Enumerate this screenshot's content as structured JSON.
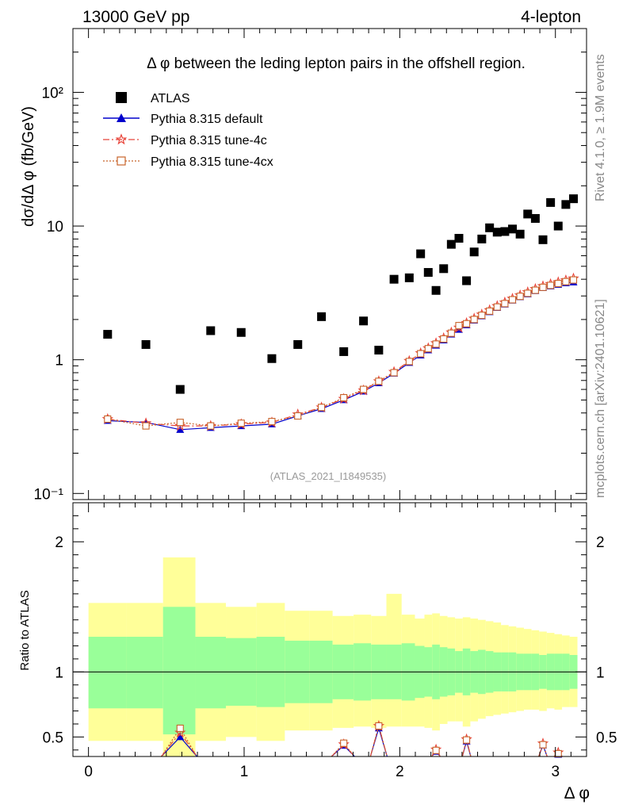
{
  "header": {
    "energy": "13000 GeV pp",
    "process": "4-lepton"
  },
  "side_labels": {
    "rivet": "Rivet 4.1.0, ≥ 1.9M events",
    "mcplots": "mcplots.cern.ch [arXiv:2401.10621]"
  },
  "chart_data": {
    "type": "scatter",
    "title": "Δ φ between the leding lepton pairs in the offshell region.",
    "analysis_tag": "(ATLAS_2021_I1849535)",
    "xlabel": "Δ φ",
    "ylabel": "dσ/dΔ φ (fb/GeV)",
    "ratio_ylabel": "Ratio to ATLAS",
    "xlim": [
      -0.1,
      3.2
    ],
    "ylim": [
      0.09,
      300
    ],
    "ratio_ylim": [
      0.35,
      2.3
    ],
    "x_ticks": [
      "0",
      "1",
      "2",
      "3"
    ],
    "y_ticks": [
      "10⁻¹",
      "1",
      "10",
      "10²"
    ],
    "ratio_ticks": [
      "0.5",
      "1",
      "2"
    ],
    "colors": {
      "data": "#000000",
      "default": "#0000cc",
      "tune4c": "#e8443a",
      "tune4cx": "#c8632a",
      "band_inner": "#99ff99",
      "band_outer": "#ffff99"
    },
    "legend": [
      "ATLAS",
      "Pythia 8.315 default",
      "Pythia 8.315 tune-4c",
      "Pythia 8.315 tune-4cx"
    ],
    "data": {
      "name": "ATLAS",
      "x": [
        0.123,
        0.369,
        0.589,
        0.785,
        0.981,
        1.178,
        1.345,
        1.497,
        1.64,
        1.767,
        1.865,
        1.963,
        2.061,
        2.134,
        2.183,
        2.233,
        2.282,
        2.331,
        2.38,
        2.429,
        2.478,
        2.527,
        2.577,
        2.626,
        2.675,
        2.724,
        2.773,
        2.822,
        2.871,
        2.92,
        2.969,
        3.018,
        3.067,
        3.116
      ],
      "y": [
        1.55,
        1.3,
        0.6,
        1.65,
        1.6,
        1.02,
        1.3,
        2.1,
        1.15,
        1.95,
        1.18,
        4.0,
        4.1,
        6.2,
        4.5,
        3.3,
        4.8,
        7.3,
        8.1,
        3.9,
        6.4,
        8.0,
        9.7,
        9.0,
        9.1,
        9.5,
        8.7,
        12.3,
        11.4,
        7.9,
        15.0,
        10.0,
        14.5,
        16.0
      ],
      "band_inner_lo": [
        0.72,
        0.72,
        0.52,
        0.72,
        0.74,
        0.73,
        0.76,
        0.76,
        0.79,
        0.78,
        0.79,
        0.79,
        0.78,
        0.8,
        0.81,
        0.79,
        0.81,
        0.82,
        0.84,
        0.82,
        0.84,
        0.83,
        0.84,
        0.85,
        0.85,
        0.85,
        0.86,
        0.86,
        0.86,
        0.87,
        0.86,
        0.86,
        0.86,
        0.87
      ],
      "band_inner_hi": [
        1.27,
        1.27,
        1.5,
        1.27,
        1.26,
        1.27,
        1.24,
        1.24,
        1.21,
        1.22,
        1.21,
        1.21,
        1.22,
        1.2,
        1.19,
        1.21,
        1.19,
        1.18,
        1.16,
        1.18,
        1.16,
        1.17,
        1.16,
        1.15,
        1.15,
        1.15,
        1.14,
        1.14,
        1.14,
        1.13,
        1.14,
        1.14,
        1.14,
        1.13
      ],
      "band_outer_lo": [
        0.47,
        0.47,
        0.3,
        0.47,
        0.5,
        0.47,
        0.55,
        0.55,
        0.57,
        0.58,
        0.57,
        0.58,
        0.58,
        0.58,
        0.57,
        0.55,
        0.6,
        0.62,
        0.62,
        0.58,
        0.62,
        0.64,
        0.66,
        0.67,
        0.68,
        0.69,
        0.7,
        0.71,
        0.71,
        0.7,
        0.72,
        0.71,
        0.73,
        0.73
      ],
      "band_outer_hi": [
        1.53,
        1.53,
        1.88,
        1.53,
        1.5,
        1.53,
        1.47,
        1.47,
        1.43,
        1.44,
        1.43,
        1.6,
        1.44,
        1.41,
        1.44,
        1.45,
        1.43,
        1.42,
        1.41,
        1.42,
        1.41,
        1.4,
        1.39,
        1.38,
        1.36,
        1.35,
        1.34,
        1.33,
        1.32,
        1.31,
        1.3,
        1.29,
        1.28,
        1.27
      ]
    },
    "series": [
      {
        "name": "Pythia 8.315 default",
        "marker": "triangle",
        "dash": "",
        "values": [
          0.35,
          0.34,
          0.3,
          0.31,
          0.32,
          0.33,
          0.38,
          0.43,
          0.5,
          0.58,
          0.67,
          0.79,
          0.95,
          1.08,
          1.18,
          1.28,
          1.4,
          1.55,
          1.68,
          1.82,
          1.97,
          2.12,
          2.28,
          2.45,
          2.6,
          2.78,
          2.95,
          3.1,
          3.28,
          3.45,
          3.55,
          3.65,
          3.75,
          3.8
        ]
      },
      {
        "name": "Pythia 8.315 tune-4c",
        "marker": "star",
        "dash": "8,3,2,3",
        "values": [
          0.36,
          0.335,
          0.32,
          0.32,
          0.33,
          0.34,
          0.39,
          0.44,
          0.51,
          0.59,
          0.69,
          0.81,
          0.98,
          1.12,
          1.22,
          1.33,
          1.45,
          1.6,
          1.74,
          1.88,
          2.03,
          2.18,
          2.35,
          2.52,
          2.68,
          2.86,
          3.03,
          3.2,
          3.38,
          3.55,
          3.68,
          3.8,
          3.93,
          4.05
        ]
      },
      {
        "name": "Pythia 8.315 tune-4cx",
        "marker": "square-open",
        "dash": "2,2",
        "values": [
          0.36,
          0.32,
          0.34,
          0.32,
          0.335,
          0.345,
          0.38,
          0.44,
          0.52,
          0.6,
          0.69,
          0.8,
          0.97,
          1.11,
          1.21,
          1.31,
          1.43,
          1.58,
          1.8,
          1.86,
          2.0,
          2.15,
          2.31,
          2.48,
          2.63,
          2.81,
          2.98,
          3.14,
          3.31,
          3.48,
          3.6,
          3.72,
          3.84,
          3.95
        ]
      }
    ]
  }
}
